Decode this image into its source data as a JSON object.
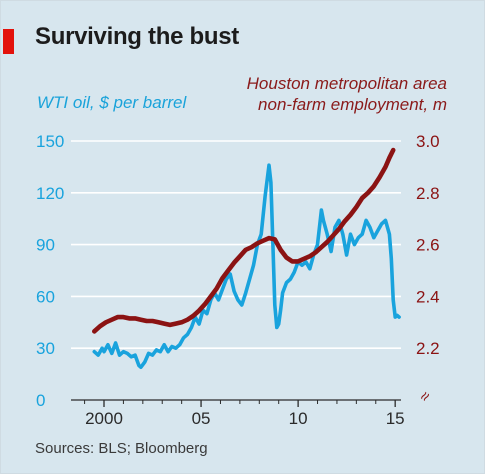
{
  "header": {
    "title": "Surviving the bust"
  },
  "footer": {
    "source": "Sources: BLS; Bloomberg"
  },
  "chart_data": {
    "type": "line",
    "title": "Surviving the bust",
    "x_tick_labels": [
      "2000",
      "05",
      "10",
      "15"
    ],
    "x_ticks": [
      2000,
      2005,
      2010,
      2015
    ],
    "xlim": [
      1998.3,
      2015.3
    ],
    "grid": true,
    "colors": {
      "oil": "#19a3dd",
      "employment": "#8b1313"
    },
    "axes": {
      "left": {
        "label": "WTI oil, $ per barrel",
        "ylim": [
          0,
          150
        ],
        "ticks": [
          0,
          30,
          60,
          90,
          120,
          150
        ],
        "tick_labels": [
          "0",
          "30",
          "60",
          "90",
          "120",
          "150"
        ]
      },
      "right": {
        "label_line1": "Houston metropolitan area",
        "label_line2": "non-farm employment, m",
        "ylim": [
          2.2,
          3.0
        ],
        "ticks": [
          2.2,
          2.4,
          2.6,
          2.8,
          3.0
        ],
        "tick_labels": [
          "2.2",
          "2.4",
          "2.6",
          "2.8",
          "3.0"
        ],
        "break_symbol": "≈"
      }
    },
    "series": [
      {
        "name": "WTI oil, $ per barrel",
        "axis": "left",
        "x": [
          1999.5,
          1999.7,
          1999.9,
          2000.0,
          2000.2,
          2000.4,
          2000.6,
          2000.8,
          2001.0,
          2001.2,
          2001.4,
          2001.6,
          2001.8,
          2001.9,
          2002.1,
          2002.3,
          2002.5,
          2002.7,
          2002.9,
          2003.1,
          2003.3,
          2003.5,
          2003.7,
          2003.9,
          2004.1,
          2004.3,
          2004.5,
          2004.7,
          2004.9,
          2005.1,
          2005.3,
          2005.5,
          2005.7,
          2005.9,
          2006.1,
          2006.3,
          2006.5,
          2006.7,
          2006.9,
          2007.1,
          2007.3,
          2007.5,
          2007.7,
          2007.9,
          2008.1,
          2008.3,
          2008.5,
          2008.6,
          2008.7,
          2008.8,
          2008.9,
          2009.0,
          2009.1,
          2009.2,
          2009.4,
          2009.6,
          2009.8,
          2010.0,
          2010.2,
          2010.4,
          2010.6,
          2010.8,
          2011.0,
          2011.2,
          2011.3,
          2011.5,
          2011.7,
          2011.9,
          2012.1,
          2012.3,
          2012.5,
          2012.7,
          2012.9,
          2013.1,
          2013.3,
          2013.5,
          2013.7,
          2013.9,
          2014.1,
          2014.3,
          2014.5,
          2014.7,
          2014.8,
          2014.9,
          2015.0,
          2015.1,
          2015.2
        ],
        "values": [
          28,
          26,
          30,
          28,
          32,
          27,
          33,
          26,
          28,
          27,
          25,
          26,
          20,
          19,
          22,
          27,
          26,
          29,
          28,
          32,
          28,
          31,
          30,
          32,
          36,
          38,
          42,
          48,
          44,
          52,
          50,
          58,
          62,
          58,
          64,
          70,
          73,
          63,
          58,
          55,
          62,
          70,
          78,
          90,
          96,
          118,
          136,
          126,
          90,
          55,
          42,
          44,
          52,
          62,
          68,
          70,
          74,
          80,
          78,
          80,
          76,
          84,
          90,
          110,
          104,
          96,
          86,
          100,
          104,
          96,
          84,
          96,
          90,
          94,
          96,
          104,
          100,
          94,
          98,
          102,
          104,
          96,
          82,
          58,
          48,
          49,
          48
        ]
      },
      {
        "name": "Houston metropolitan area non-farm employment, m",
        "axis": "right",
        "x": [
          1999.5,
          1999.8,
          2000.1,
          2000.4,
          2000.7,
          2001.0,
          2001.3,
          2001.6,
          2001.9,
          2002.2,
          2002.5,
          2002.8,
          2003.1,
          2003.4,
          2003.7,
          2004.0,
          2004.3,
          2004.6,
          2004.9,
          2005.2,
          2005.5,
          2005.8,
          2006.1,
          2006.4,
          2006.7,
          2007.0,
          2007.3,
          2007.6,
          2007.9,
          2008.2,
          2008.5,
          2008.8,
          2009.1,
          2009.4,
          2009.7,
          2010.0,
          2010.3,
          2010.6,
          2010.9,
          2011.2,
          2011.5,
          2011.8,
          2012.1,
          2012.4,
          2012.7,
          2013.0,
          2013.3,
          2013.6,
          2013.9,
          2014.2,
          2014.5,
          2014.7,
          2014.9
        ],
        "values": [
          2.265,
          2.285,
          2.3,
          2.31,
          2.32,
          2.32,
          2.315,
          2.315,
          2.31,
          2.305,
          2.305,
          2.3,
          2.295,
          2.29,
          2.295,
          2.3,
          2.31,
          2.325,
          2.345,
          2.37,
          2.4,
          2.43,
          2.47,
          2.5,
          2.53,
          2.555,
          2.58,
          2.59,
          2.605,
          2.615,
          2.625,
          2.62,
          2.58,
          2.55,
          2.535,
          2.535,
          2.545,
          2.555,
          2.57,
          2.59,
          2.61,
          2.635,
          2.66,
          2.69,
          2.715,
          2.745,
          2.78,
          2.8,
          2.825,
          2.86,
          2.9,
          2.935,
          2.965
        ]
      }
    ]
  }
}
